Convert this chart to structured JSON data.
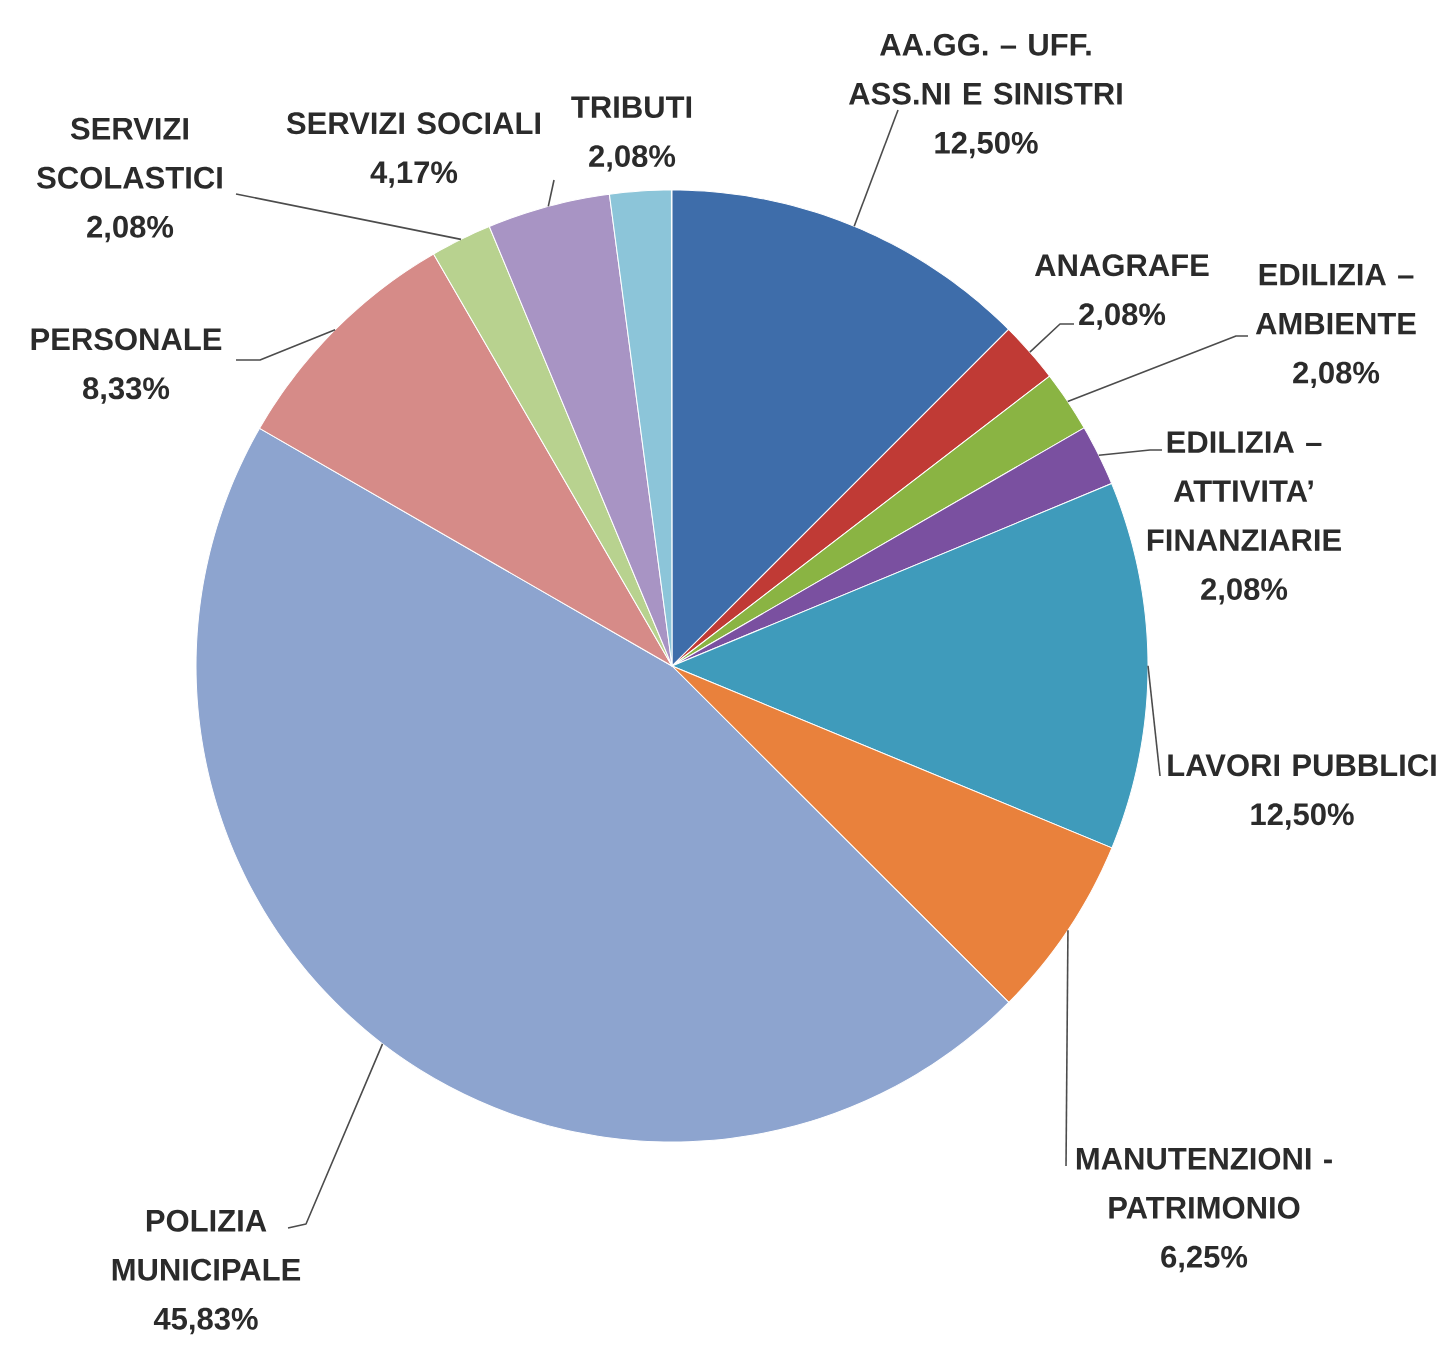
{
  "chart_data": {
    "type": "pie",
    "categories": [
      "AA.GG. – UFF. ASS.NI E SINISTRI",
      "ANAGRAFE",
      "EDILIZIA – AMBIENTE",
      "EDILIZIA – ATTIVITA’ FINANZIARIE",
      "LAVORI PUBBLICI",
      "MANUTENZIONI - PATRIMONIO",
      "POLIZIA MUNICIPALE",
      "PERSONALE",
      "SERVIZI SCOLASTICI",
      "SERVIZI SOCIALI",
      "TRIBUTI"
    ],
    "values": [
      12.5,
      2.08,
      2.08,
      2.08,
      12.5,
      6.25,
      45.83,
      8.33,
      2.08,
      4.17,
      2.08
    ],
    "value_labels": [
      "12,50%",
      "2,08%",
      "2,08%",
      "2,08%",
      "12,50%",
      "6,25%",
      "45,83%",
      "8,33%",
      "2,08%",
      "4,17%",
      "2,08%"
    ],
    "colors": [
      "#3e6daa",
      "#c03a35",
      "#8ab443",
      "#7a50a0",
      "#3f9bbb",
      "#e9813c",
      "#8da4cf",
      "#d68b88",
      "#b8d28f",
      "#a894c4",
      "#8cc5d9"
    ]
  }
}
